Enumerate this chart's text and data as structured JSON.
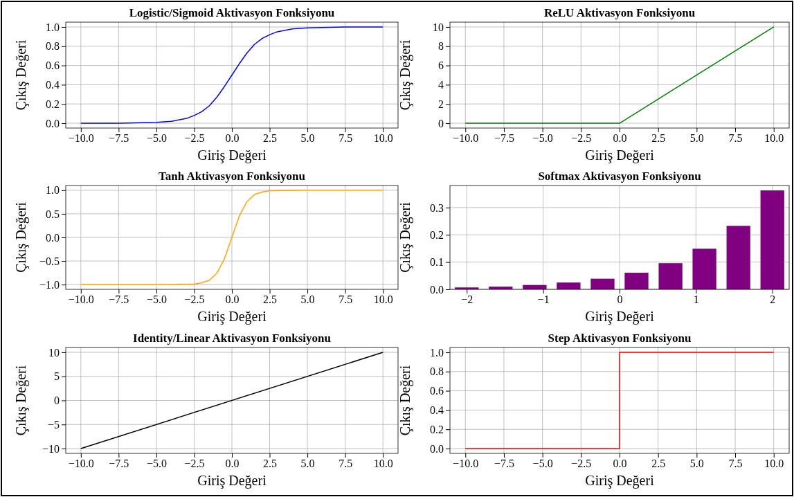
{
  "chart_data": [
    {
      "type": "line",
      "title": "Logistic/Sigmoid Aktivasyon Fonksiyonu",
      "xlabel": "Giriş Değeri",
      "ylabel": "Çıkış Değeri",
      "color": "#0000ff",
      "x": [
        -10,
        -7.5,
        -5,
        -4,
        -3,
        -2.5,
        -2,
        -1.5,
        -1,
        -0.5,
        0,
        0.5,
        1,
        1.5,
        2,
        2.5,
        3,
        4,
        5,
        7.5,
        10
      ],
      "values": [
        0.0,
        0.0,
        0.01,
        0.02,
        0.05,
        0.08,
        0.12,
        0.18,
        0.27,
        0.38,
        0.5,
        0.62,
        0.73,
        0.82,
        0.88,
        0.92,
        0.95,
        0.98,
        0.99,
        1.0,
        1.0
      ],
      "xlim": [
        -11,
        11
      ],
      "ylim": [
        -0.05,
        1.05
      ],
      "xticks": [
        {
          "value": -10,
          "label": "−10.0"
        },
        {
          "value": -7.5,
          "label": "−7.5"
        },
        {
          "value": -5,
          "label": "−5.0"
        },
        {
          "value": -2.5,
          "label": "−2.5"
        },
        {
          "value": 0,
          "label": "0.0"
        },
        {
          "value": 2.5,
          "label": "2.5"
        },
        {
          "value": 5,
          "label": "5.0"
        },
        {
          "value": 7.5,
          "label": "7.5"
        },
        {
          "value": 10,
          "label": "10.0"
        }
      ],
      "yticks": [
        {
          "value": 0,
          "label": "0.0"
        },
        {
          "value": 0.2,
          "label": "0.2"
        },
        {
          "value": 0.4,
          "label": "0.4"
        },
        {
          "value": 0.6,
          "label": "0.6"
        },
        {
          "value": 0.8,
          "label": "0.8"
        },
        {
          "value": 1,
          "label": "1.0"
        }
      ],
      "grid": true
    },
    {
      "type": "line",
      "title": "ReLU Aktivasyon Fonksiyonu",
      "xlabel": "Giriş Değeri",
      "ylabel": "Çıkış Değeri",
      "color": "#008000",
      "x": [
        -10,
        0,
        10
      ],
      "values": [
        0,
        0,
        10
      ],
      "xlim": [
        -11,
        11
      ],
      "ylim": [
        -0.5,
        10.5
      ],
      "xticks": [
        {
          "value": -10,
          "label": "−10.0"
        },
        {
          "value": -7.5,
          "label": "−7.5"
        },
        {
          "value": -5,
          "label": "−5.0"
        },
        {
          "value": -2.5,
          "label": "−2.5"
        },
        {
          "value": 0,
          "label": "0.0"
        },
        {
          "value": 2.5,
          "label": "2.5"
        },
        {
          "value": 5,
          "label": "5.0"
        },
        {
          "value": 7.5,
          "label": "7.5"
        },
        {
          "value": 10,
          "label": "10.0"
        }
      ],
      "yticks": [
        0,
        2,
        4,
        6,
        8,
        10
      ],
      "grid": true
    },
    {
      "type": "line",
      "title": "Tanh Aktivasyon Fonksiyonu",
      "xlabel": "Giriş Değeri",
      "ylabel": "Çıkış Değeri",
      "color": "#ffa500",
      "x": [
        -10,
        -5,
        -3,
        -2.5,
        -2,
        -1.5,
        -1,
        -0.5,
        0,
        0.5,
        1,
        1.5,
        2,
        2.5,
        3,
        5,
        10
      ],
      "values": [
        -1.0,
        -1.0,
        -0.99,
        -0.99,
        -0.96,
        -0.91,
        -0.76,
        -0.46,
        0.0,
        0.46,
        0.76,
        0.91,
        0.96,
        0.99,
        0.99,
        1.0,
        1.0
      ],
      "xlim": [
        -11,
        11
      ],
      "ylim": [
        -1.1,
        1.1
      ],
      "xticks": [
        {
          "value": -10,
          "label": "−10.0"
        },
        {
          "value": -7.5,
          "label": "−7.5"
        },
        {
          "value": -5,
          "label": "−5.0"
        },
        {
          "value": -2.5,
          "label": "−2.5"
        },
        {
          "value": 0,
          "label": "0.0"
        },
        {
          "value": 2.5,
          "label": "2.5"
        },
        {
          "value": 5,
          "label": "5.0"
        },
        {
          "value": 7.5,
          "label": "7.5"
        },
        {
          "value": 10,
          "label": "10.0"
        }
      ],
      "yticks": [
        {
          "value": -1,
          "label": "−1.0"
        },
        {
          "value": -0.5,
          "label": "−0.5"
        },
        {
          "value": 0,
          "label": "0.0"
        },
        {
          "value": 0.5,
          "label": "0.5"
        },
        {
          "value": 1,
          "label": "1.0"
        }
      ],
      "grid": true
    },
    {
      "type": "bar",
      "title": "Softmax Aktivasyon Fonksiyonu",
      "xlabel": "Giriş Değeri",
      "ylabel": "Çıkış Değeri",
      "color": "#800080",
      "x": [
        -2,
        -1.556,
        -1.111,
        -0.667,
        -0.222,
        0.222,
        0.667,
        1.111,
        1.556,
        2
      ],
      "values": [
        0.007,
        0.01,
        0.016,
        0.025,
        0.039,
        0.061,
        0.096,
        0.149,
        0.233,
        0.363
      ],
      "xlim": [
        -2.22,
        2.22
      ],
      "ylim": [
        0,
        0.381
      ],
      "xticks": [
        {
          "value": -2,
          "label": "−2"
        },
        {
          "value": -1,
          "label": "−1"
        },
        {
          "value": 0,
          "label": "0"
        },
        {
          "value": 1,
          "label": "1"
        },
        {
          "value": 2,
          "label": "2"
        }
      ],
      "yticks": [
        {
          "value": 0,
          "label": "0.0"
        },
        {
          "value": 0.1,
          "label": "0.1"
        },
        {
          "value": 0.2,
          "label": "0.2"
        },
        {
          "value": 0.3,
          "label": "0.3"
        }
      ],
      "grid": true
    },
    {
      "type": "line",
      "title": "Identity/Linear Aktivasyon Fonksiyonu",
      "xlabel": "Giriş Değeri",
      "ylabel": "Çıkış Değeri",
      "color": "#000000",
      "x": [
        -10,
        10
      ],
      "values": [
        -10,
        10
      ],
      "xlim": [
        -11,
        11
      ],
      "ylim": [
        -11,
        11
      ],
      "xticks": [
        {
          "value": -10,
          "label": "−10.0"
        },
        {
          "value": -7.5,
          "label": "−7.5"
        },
        {
          "value": -5,
          "label": "−5.0"
        },
        {
          "value": -2.5,
          "label": "−2.5"
        },
        {
          "value": 0,
          "label": "0.0"
        },
        {
          "value": 2.5,
          "label": "2.5"
        },
        {
          "value": 5,
          "label": "5.0"
        },
        {
          "value": 7.5,
          "label": "7.5"
        },
        {
          "value": 10,
          "label": "10.0"
        }
      ],
      "yticks": [
        {
          "value": -10,
          "label": "−10"
        },
        {
          "value": -5,
          "label": "−5"
        },
        0,
        5,
        10
      ],
      "grid": true
    },
    {
      "type": "step",
      "title": "Step Aktivasyon Fonksiyonu",
      "xlabel": "Giriş Değeri",
      "ylabel": "Çıkış Değeri",
      "color": "#ff0000",
      "x": [
        -10,
        0,
        10
      ],
      "values": [
        0,
        1,
        1
      ],
      "xlim": [
        -11,
        11
      ],
      "ylim": [
        -0.05,
        1.05
      ],
      "xticks": [
        {
          "value": -10,
          "label": "−10.0"
        },
        {
          "value": -7.5,
          "label": "−7.5"
        },
        {
          "value": -5,
          "label": "−5.0"
        },
        {
          "value": -2.5,
          "label": "−2.5"
        },
        {
          "value": 0,
          "label": "0.0"
        },
        {
          "value": 2.5,
          "label": "2.5"
        },
        {
          "value": 5,
          "label": "5.0"
        },
        {
          "value": 7.5,
          "label": "7.5"
        },
        {
          "value": 10,
          "label": "10.0"
        }
      ],
      "yticks": [
        {
          "value": 0,
          "label": "0.0"
        },
        {
          "value": 0.2,
          "label": "0.2"
        },
        {
          "value": 0.4,
          "label": "0.4"
        },
        {
          "value": 0.6,
          "label": "0.6"
        },
        {
          "value": 0.8,
          "label": "0.8"
        },
        {
          "value": 1,
          "label": "1.0"
        }
      ],
      "grid": true
    }
  ]
}
